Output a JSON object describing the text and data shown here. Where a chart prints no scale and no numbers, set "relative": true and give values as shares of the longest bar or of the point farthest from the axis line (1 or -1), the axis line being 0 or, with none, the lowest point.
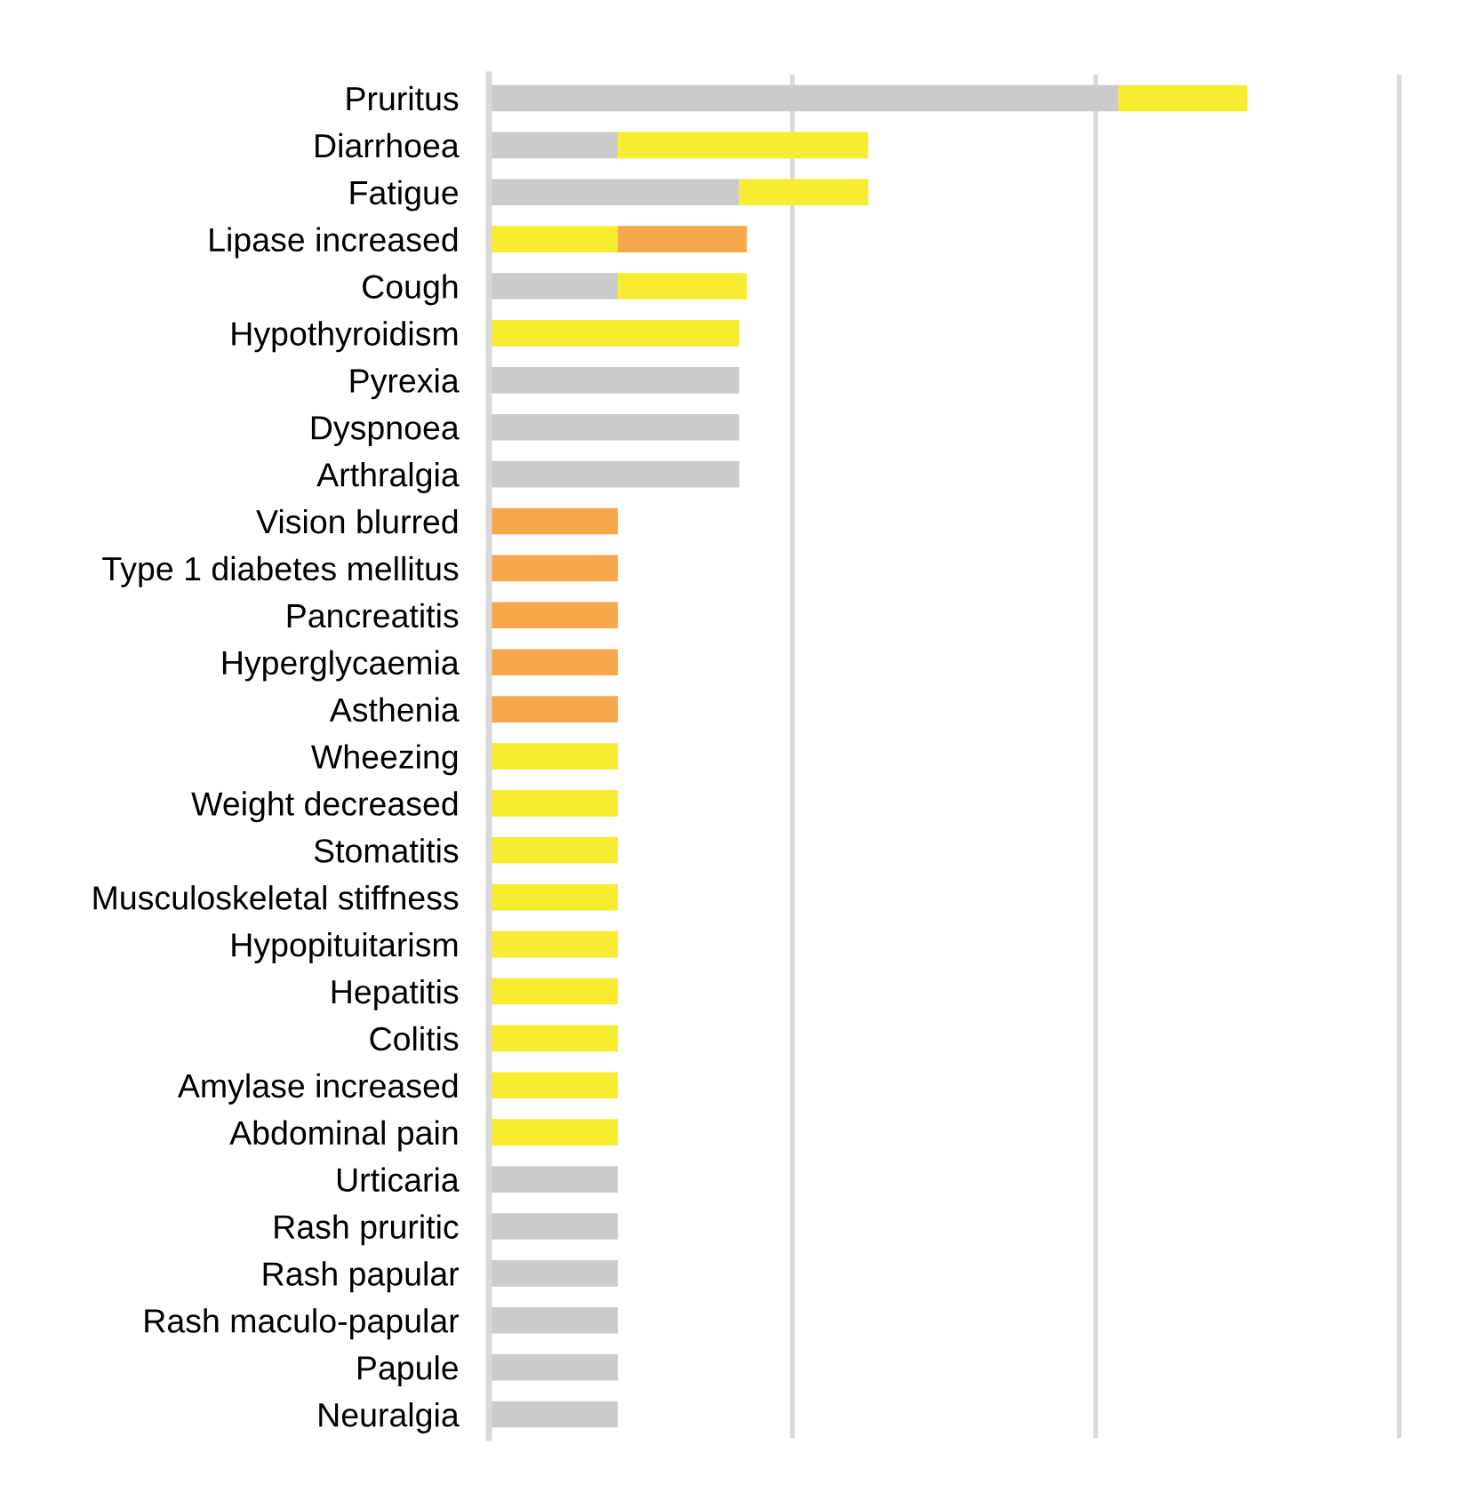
{
  "chart_data": {
    "type": "bar",
    "orientation": "horizontal",
    "stacked": true,
    "relative": true,
    "categories": [
      "Pruritus",
      "Diarrhoea",
      "Fatigue",
      "Lipase increased",
      "Cough",
      "Hypothyroidism",
      "Pyrexia",
      "Dyspnoea",
      "Arthralgia",
      "Vision blurred",
      "Type 1 diabetes mellitus",
      "Pancreatitis",
      "Hyperglycaemia",
      "Asthenia",
      "Wheezing",
      "Weight decreased",
      "Stomatitis",
      "Musculoskeletal stiffness",
      "Hypopituitarism",
      "Hepatitis",
      "Colitis",
      "Amylase increased",
      "Abdominal pain",
      "Urticaria",
      "Rash pruritic",
      "Rash papular",
      "Rash maculo-papular",
      "Papule",
      "Neuralgia"
    ],
    "series": [
      {
        "color": "#cbcbcb",
        "values": [
          0.83,
          0.17,
          0.33,
          null,
          0.17,
          null,
          0.33,
          0.33,
          0.33,
          null,
          null,
          null,
          null,
          null,
          null,
          null,
          null,
          null,
          null,
          null,
          null,
          null,
          null,
          0.17,
          0.17,
          0.17,
          0.17,
          0.17,
          0.17
        ]
      },
      {
        "color": "#f7ec2f",
        "values": [
          0.17,
          0.33,
          0.17,
          0.17,
          0.17,
          0.33,
          null,
          null,
          null,
          null,
          null,
          null,
          null,
          null,
          0.17,
          0.17,
          0.17,
          0.17,
          0.17,
          0.17,
          0.17,
          0.17,
          0.17,
          null,
          null,
          null,
          null,
          null,
          null
        ]
      },
      {
        "color": "#f6a84a",
        "values": [
          null,
          null,
          null,
          0.17,
          null,
          null,
          null,
          null,
          null,
          0.17,
          0.17,
          0.17,
          0.17,
          0.17,
          null,
          null,
          null,
          null,
          null,
          null,
          null,
          null,
          null,
          null,
          null,
          null,
          null,
          null,
          null
        ]
      }
    ],
    "ref_lines": [
      {
        "axis": "x",
        "value": 0.4,
        "color": "#d9d9d9"
      },
      {
        "axis": "x",
        "value": 0.8,
        "color": "#d9d9d9"
      },
      {
        "axis": "x",
        "value": 1.2,
        "color": "#d9d9d9"
      }
    ]
  }
}
